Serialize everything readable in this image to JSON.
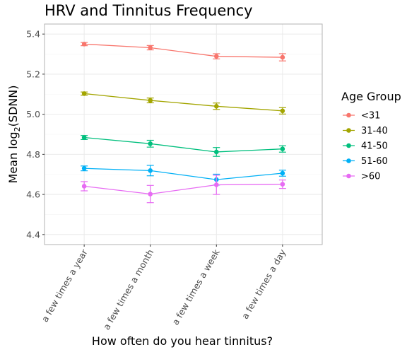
{
  "chart_data": {
    "type": "line",
    "title": "HRV and Tinnitus Frequency",
    "xlabel": "How often do you hear tinnitus?",
    "ylabel": "Mean log₂(SDNN)",
    "ylim": [
      4.35,
      5.45
    ],
    "yticks": [
      4.4,
      4.6,
      4.8,
      5.0,
      5.2,
      5.4
    ],
    "ytick_labels": [
      "4.4",
      "4.6",
      "4.8",
      "5.0",
      "5.2",
      "5.4"
    ],
    "categories": [
      "a few times a year",
      "a few times a month",
      "a few times a week",
      "a few times a day"
    ],
    "grid": true,
    "legend": {
      "title": "Age Group",
      "position": "right"
    },
    "series": [
      {
        "name": "<31",
        "color": "#F8766D",
        "values": [
          5.35,
          5.332,
          5.289,
          5.284
        ],
        "err": [
          0.008,
          0.011,
          0.013,
          0.018
        ]
      },
      {
        "name": "31-40",
        "color": "#A3A500",
        "values": [
          5.103,
          5.069,
          5.04,
          5.017
        ],
        "err": [
          0.008,
          0.012,
          0.016,
          0.016
        ]
      },
      {
        "name": "41-50",
        "color": "#00BF7D",
        "values": [
          4.884,
          4.853,
          4.812,
          4.827
        ],
        "err": [
          0.01,
          0.017,
          0.022,
          0.016
        ]
      },
      {
        "name": "51-60",
        "color": "#00B0F6",
        "values": [
          4.73,
          4.719,
          4.674,
          4.706
        ],
        "err": [
          0.012,
          0.026,
          0.027,
          0.015
        ]
      },
      {
        "name": ">60",
        "color": "#E76BF3",
        "values": [
          4.641,
          4.602,
          4.648,
          4.651
        ],
        "err": [
          0.023,
          0.043,
          0.048,
          0.021
        ]
      }
    ]
  }
}
